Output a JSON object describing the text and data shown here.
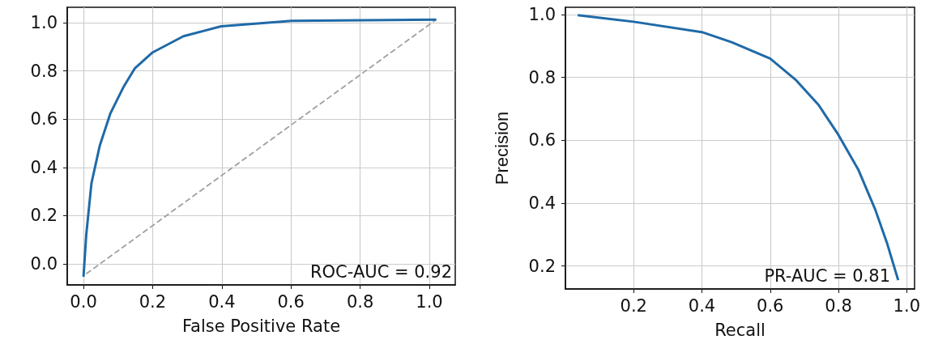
{
  "chart_data": [
    {
      "type": "line",
      "xlabel": "False Positive Rate",
      "xlim": [
        -0.047,
        1.075
      ],
      "ylim": [
        -0.087,
        1.064
      ],
      "xticks": [
        {
          "value": 0,
          "label": "0.0"
        },
        {
          "value": 0.2,
          "label": "0.2"
        },
        {
          "value": 0.4,
          "label": "0.4"
        },
        {
          "value": 0.6,
          "label": "0.6"
        },
        {
          "value": 0.8,
          "label": "0.8"
        },
        {
          "value": 1,
          "label": "1.0"
        }
      ],
      "yticks": [
        {
          "value": 0,
          "label": "0.0"
        },
        {
          "value": 0.2,
          "label": "0.2"
        },
        {
          "value": 0.4,
          "label": "0.4"
        },
        {
          "value": 0.6,
          "label": "0.6"
        },
        {
          "value": 0.8,
          "label": "0.8"
        },
        {
          "value": 1,
          "label": "1.0"
        }
      ],
      "grid": true,
      "marker": "none",
      "annotations": [
        "ROC-AUC = 0.92"
      ],
      "series": [
        {
          "color": "#1f6aa8",
          "line_style": "solid",
          "x": [
            0,
            0.008,
            0.023,
            0.047,
            0.078,
            0.117,
            0.148,
            0.2,
            0.289,
            0.398,
            0.602,
            1.02
          ],
          "values": [
            -0.053,
            0.121,
            0.334,
            0.49,
            0.625,
            0.737,
            0.81,
            0.877,
            0.944,
            0.985,
            1.008,
            1.013
          ]
        },
        {
          "color": "#a0a0a0",
          "line_style": "dashed",
          "x": [
            0.008,
            1.02
          ],
          "values": [
            -0.041,
            1.013
          ]
        }
      ]
    },
    {
      "type": "line",
      "xlabel": "Recall",
      "ylabel": "Precision",
      "xlim": [
        0,
        1.023
      ],
      "ylim": [
        0.127,
        1.023
      ],
      "xticks": [
        {
          "value": 0.2,
          "label": "0.2"
        },
        {
          "value": 0.4,
          "label": "0.4"
        },
        {
          "value": 0.6,
          "label": "0.6"
        },
        {
          "value": 0.8,
          "label": "0.8"
        },
        {
          "value": 1,
          "label": "1.0"
        }
      ],
      "yticks": [
        {
          "value": 0.2,
          "label": "0.2"
        },
        {
          "value": 0.4,
          "label": "0.4"
        },
        {
          "value": 0.6,
          "label": "0.6"
        },
        {
          "value": 0.8,
          "label": "0.8"
        },
        {
          "value": 1,
          "label": "1.0"
        }
      ],
      "grid": true,
      "marker": "none",
      "annotations": [
        "PR-AUC = 0.81"
      ],
      "series": [
        {
          "color": "#1f6aa8",
          "line_style": "solid",
          "x": [
            0.036,
            0.2,
            0.4,
            0.487,
            0.6,
            0.674,
            0.742,
            0.8,
            0.858,
            0.908,
            0.942,
            0.975
          ],
          "values": [
            0.998,
            0.977,
            0.944,
            0.912,
            0.86,
            0.793,
            0.712,
            0.617,
            0.507,
            0.379,
            0.274,
            0.155
          ]
        }
      ]
    }
  ]
}
